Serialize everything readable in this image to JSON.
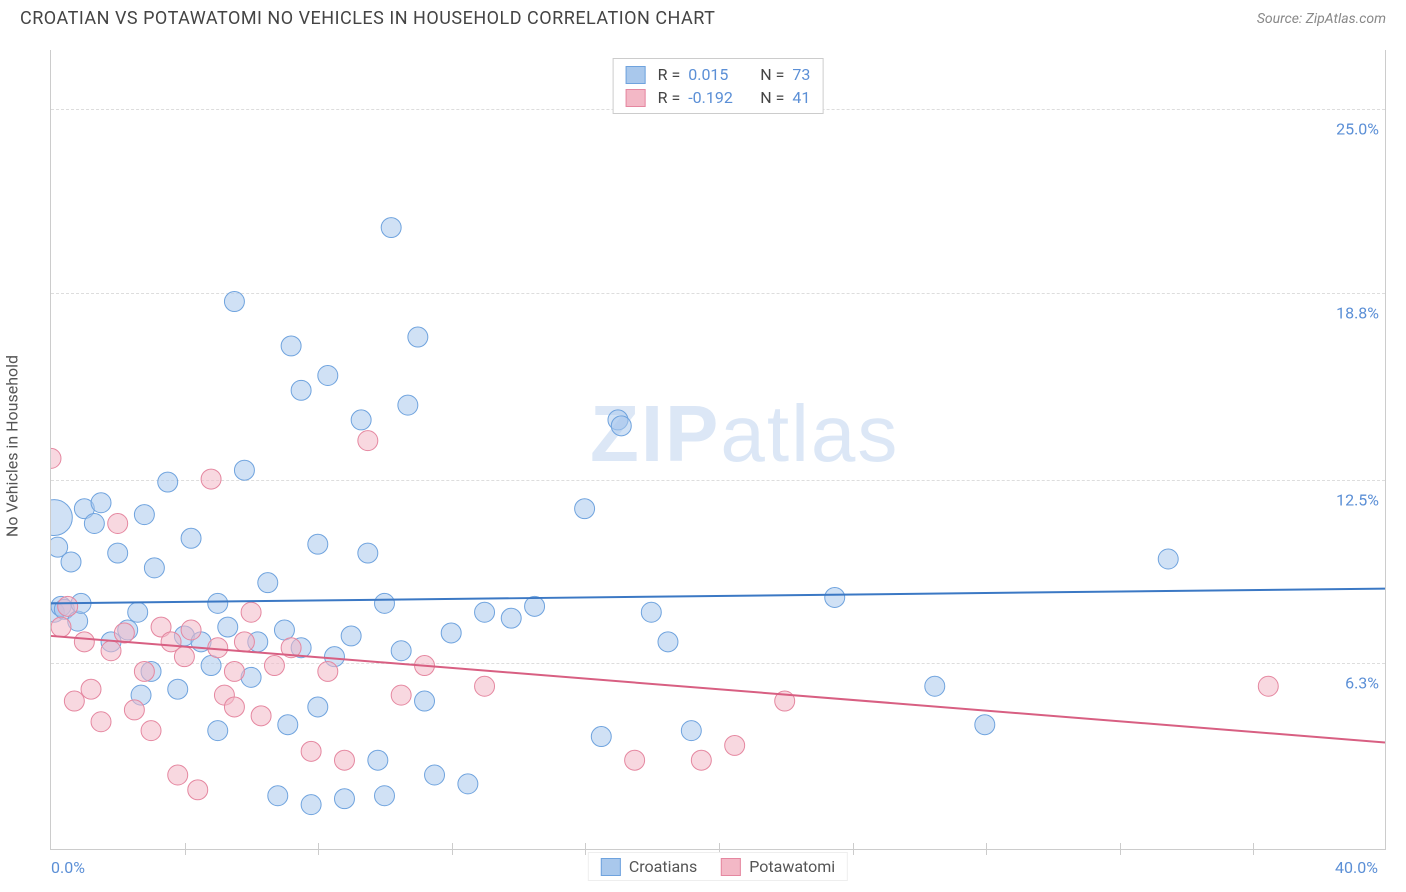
{
  "title": "CROATIAN VS POTAWATOMI NO VEHICLES IN HOUSEHOLD CORRELATION CHART",
  "source": "Source: ZipAtlas.com",
  "ylabel": "No Vehicles in Household",
  "watermark_bold": "ZIP",
  "watermark_light": "atlas",
  "chart": {
    "type": "scatter",
    "xlim": [
      0,
      40
    ],
    "ylim": [
      0,
      27
    ],
    "yticks": [
      {
        "value": 6.3,
        "label": "6.3%"
      },
      {
        "value": 12.5,
        "label": "12.5%"
      },
      {
        "value": 18.8,
        "label": "18.8%"
      },
      {
        "value": 25.0,
        "label": "25.0%"
      }
    ],
    "xtick_marks": [
      4,
      8,
      12,
      16,
      20,
      24,
      28,
      32,
      36
    ],
    "xaxis_labels": [
      {
        "value": 0,
        "label": "0.0%"
      },
      {
        "value": 40,
        "label": "40.0%"
      }
    ],
    "grid_color": "#dddddd",
    "border_color": "#cccccc",
    "background_color": "#ffffff",
    "series": [
      {
        "name": "Croatians",
        "fill": "#a9c8ec",
        "stroke": "#6fa3de",
        "fill_opacity": 0.55,
        "marker_radius": 10,
        "trend": {
          "y_at_x0": 8.3,
          "y_at_xmax": 8.8,
          "color": "#3b78c4",
          "width": 2
        },
        "R": "0.015",
        "N": "73",
        "points": [
          {
            "x": 0.1,
            "y": 11.2,
            "r": 18
          },
          {
            "x": 0.1,
            "y": 8.0
          },
          {
            "x": 0.2,
            "y": 10.2
          },
          {
            "x": 0.3,
            "y": 8.2
          },
          {
            "x": 0.4,
            "y": 8.1
          },
          {
            "x": 0.6,
            "y": 9.7
          },
          {
            "x": 0.8,
            "y": 7.7
          },
          {
            "x": 0.9,
            "y": 8.3
          },
          {
            "x": 1.0,
            "y": 11.5
          },
          {
            "x": 1.3,
            "y": 11.0
          },
          {
            "x": 1.5,
            "y": 11.7
          },
          {
            "x": 1.8,
            "y": 7.0
          },
          {
            "x": 2.0,
            "y": 10.0
          },
          {
            "x": 2.3,
            "y": 7.4
          },
          {
            "x": 2.6,
            "y": 8.0
          },
          {
            "x": 2.7,
            "y": 5.2
          },
          {
            "x": 2.8,
            "y": 11.3
          },
          {
            "x": 3.0,
            "y": 6.0
          },
          {
            "x": 3.1,
            "y": 9.5
          },
          {
            "x": 3.5,
            "y": 12.4
          },
          {
            "x": 3.8,
            "y": 5.4
          },
          {
            "x": 4.0,
            "y": 7.2
          },
          {
            "x": 4.2,
            "y": 10.5
          },
          {
            "x": 4.5,
            "y": 7.0
          },
          {
            "x": 4.8,
            "y": 6.2
          },
          {
            "x": 5.0,
            "y": 8.3
          },
          {
            "x": 5.0,
            "y": 4.0
          },
          {
            "x": 5.3,
            "y": 7.5
          },
          {
            "x": 5.5,
            "y": 18.5
          },
          {
            "x": 5.8,
            "y": 12.8
          },
          {
            "x": 6.0,
            "y": 5.8
          },
          {
            "x": 6.2,
            "y": 7.0
          },
          {
            "x": 6.5,
            "y": 9.0
          },
          {
            "x": 6.8,
            "y": 1.8
          },
          {
            "x": 7.0,
            "y": 7.4
          },
          {
            "x": 7.1,
            "y": 4.2
          },
          {
            "x": 7.2,
            "y": 17.0
          },
          {
            "x": 7.5,
            "y": 15.5
          },
          {
            "x": 7.5,
            "y": 6.8
          },
          {
            "x": 7.8,
            "y": 1.5
          },
          {
            "x": 8.0,
            "y": 10.3
          },
          {
            "x": 8.0,
            "y": 4.8
          },
          {
            "x": 8.3,
            "y": 16.0
          },
          {
            "x": 8.5,
            "y": 6.5
          },
          {
            "x": 8.8,
            "y": 1.7
          },
          {
            "x": 9.0,
            "y": 7.2
          },
          {
            "x": 9.3,
            "y": 14.5
          },
          {
            "x": 9.5,
            "y": 10.0
          },
          {
            "x": 9.8,
            "y": 3.0
          },
          {
            "x": 10.0,
            "y": 8.3
          },
          {
            "x": 10.0,
            "y": 1.8
          },
          {
            "x": 10.2,
            "y": 21.0
          },
          {
            "x": 10.5,
            "y": 6.7
          },
          {
            "x": 10.7,
            "y": 15.0
          },
          {
            "x": 11.0,
            "y": 17.3
          },
          {
            "x": 11.2,
            "y": 5.0
          },
          {
            "x": 11.5,
            "y": 2.5
          },
          {
            "x": 12.0,
            "y": 7.3
          },
          {
            "x": 12.5,
            "y": 2.2
          },
          {
            "x": 13.0,
            "y": 8.0
          },
          {
            "x": 13.8,
            "y": 7.8
          },
          {
            "x": 14.5,
            "y": 8.2
          },
          {
            "x": 16.0,
            "y": 11.5
          },
          {
            "x": 16.5,
            "y": 3.8
          },
          {
            "x": 17.0,
            "y": 14.5
          },
          {
            "x": 17.1,
            "y": 14.3
          },
          {
            "x": 18.0,
            "y": 8.0
          },
          {
            "x": 18.5,
            "y": 7.0
          },
          {
            "x": 19.2,
            "y": 4.0
          },
          {
            "x": 23.5,
            "y": 8.5
          },
          {
            "x": 26.5,
            "y": 5.5
          },
          {
            "x": 28.0,
            "y": 4.2
          },
          {
            "x": 33.5,
            "y": 9.8
          }
        ]
      },
      {
        "name": "Potawatomi",
        "fill": "#f3b8c6",
        "stroke": "#e587a0",
        "fill_opacity": 0.55,
        "marker_radius": 10,
        "trend": {
          "y_at_x0": 7.2,
          "y_at_xmax": 3.6,
          "color": "#d85f82",
          "width": 2
        },
        "R": "-0.192",
        "N": "41",
        "points": [
          {
            "x": 0.0,
            "y": 13.2
          },
          {
            "x": 0.3,
            "y": 7.5
          },
          {
            "x": 0.5,
            "y": 8.2
          },
          {
            "x": 0.7,
            "y": 5.0
          },
          {
            "x": 1.0,
            "y": 7.0
          },
          {
            "x": 1.2,
            "y": 5.4
          },
          {
            "x": 1.5,
            "y": 4.3
          },
          {
            "x": 1.8,
            "y": 6.7
          },
          {
            "x": 2.0,
            "y": 11.0
          },
          {
            "x": 2.2,
            "y": 7.3
          },
          {
            "x": 2.5,
            "y": 4.7
          },
          {
            "x": 2.8,
            "y": 6.0
          },
          {
            "x": 3.0,
            "y": 4.0
          },
          {
            "x": 3.3,
            "y": 7.5
          },
          {
            "x": 3.6,
            "y": 7.0
          },
          {
            "x": 3.8,
            "y": 2.5
          },
          {
            "x": 4.0,
            "y": 6.5
          },
          {
            "x": 4.2,
            "y": 7.4
          },
          {
            "x": 4.4,
            "y": 2.0
          },
          {
            "x": 4.8,
            "y": 12.5
          },
          {
            "x": 5.0,
            "y": 6.8
          },
          {
            "x": 5.2,
            "y": 5.2
          },
          {
            "x": 5.5,
            "y": 6.0
          },
          {
            "x": 5.5,
            "y": 4.8
          },
          {
            "x": 5.8,
            "y": 7.0
          },
          {
            "x": 6.0,
            "y": 8.0
          },
          {
            "x": 6.3,
            "y": 4.5
          },
          {
            "x": 6.7,
            "y": 6.2
          },
          {
            "x": 7.2,
            "y": 6.8
          },
          {
            "x": 7.8,
            "y": 3.3
          },
          {
            "x": 8.3,
            "y": 6.0
          },
          {
            "x": 8.8,
            "y": 3.0
          },
          {
            "x": 9.5,
            "y": 13.8
          },
          {
            "x": 10.5,
            "y": 5.2
          },
          {
            "x": 11.2,
            "y": 6.2
          },
          {
            "x": 13.0,
            "y": 5.5
          },
          {
            "x": 17.5,
            "y": 3.0
          },
          {
            "x": 19.5,
            "y": 3.0
          },
          {
            "x": 20.5,
            "y": 3.5
          },
          {
            "x": 22.0,
            "y": 5.0
          },
          {
            "x": 36.5,
            "y": 5.5
          }
        ]
      }
    ]
  },
  "legend_top": {
    "r_label": "R =",
    "n_label": "N ="
  },
  "legend_bottom": {
    "label1": "Croatians",
    "label2": "Potawatomi"
  }
}
